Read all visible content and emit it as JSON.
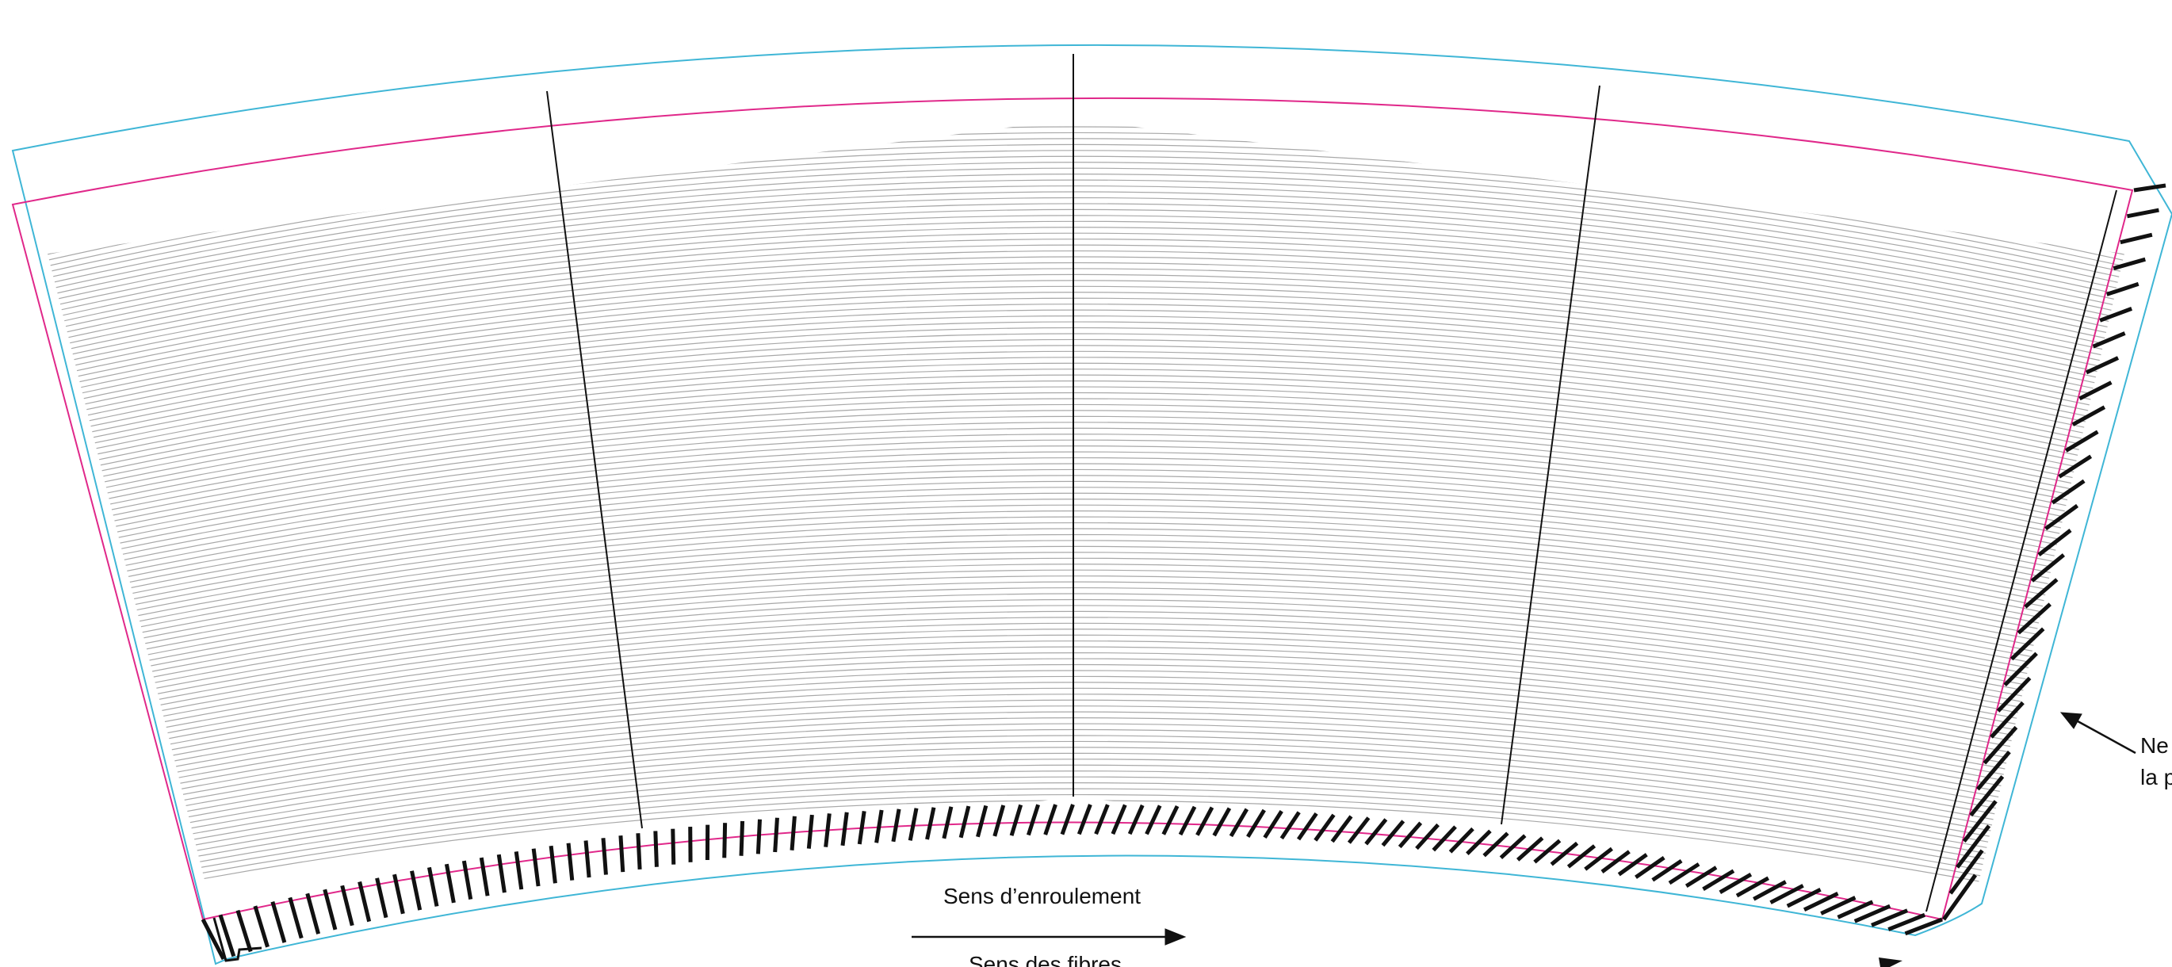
{
  "colors": {
    "bleed_outline": "#3fb6d6",
    "cut_outline": "#e0288a",
    "panel_divider": "#111111",
    "print_lines": "#a8a8a8",
    "glue_hatch": "#111111",
    "text": "#111111"
  },
  "labels": {
    "winding_direction": "Sens d’enroulement",
    "fibre_direction": "Sens des fibres",
    "right_note_line1": "Ne",
    "right_note_line2": "la p"
  },
  "icons": {
    "winding_arrow": "arrow-right-icon",
    "note_arrow": "arrow-up-left-icon",
    "corner_arrow": "arrowhead-icon"
  }
}
